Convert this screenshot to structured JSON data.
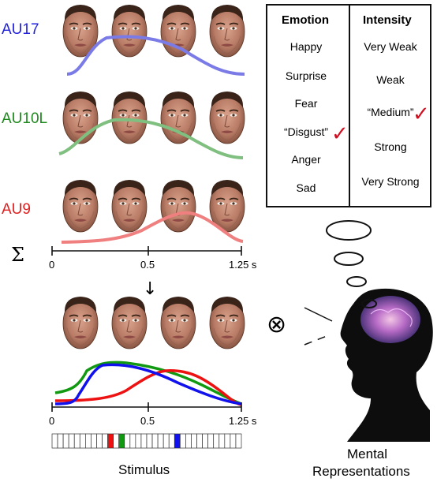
{
  "action_units": [
    {
      "label": "AU17",
      "color": "#2222dd",
      "curve_color": "#7b7be8"
    },
    {
      "label": "AU10L",
      "color": "#1e8a1e",
      "curve_color": "#7fbf7f"
    },
    {
      "label": "AU9",
      "color": "#e02020",
      "curve_color": "#f08080"
    }
  ],
  "sum_symbol": "Σ",
  "down_arrow": "↓",
  "otimes_symbol": "⊗",
  "check_mark": "✓",
  "axis": {
    "tick_0": "0",
    "tick_mid": "0.5",
    "tick_end": "1.25 s"
  },
  "table": {
    "emotion_header": "Emotion",
    "intensity_header": "Intensity",
    "emotions": [
      "Happy",
      "Surprise",
      "Fear",
      "“Disgust”",
      "Anger",
      "Sad"
    ],
    "intensities": [
      "Very Weak",
      "Weak",
      "“Medium”",
      "Strong",
      "Very Strong"
    ],
    "selected_emotion_index": 3,
    "selected_intensity_index": 2
  },
  "captions": {
    "stimulus": "Stimulus",
    "mental_line1": "Mental",
    "mental_line2": "Representations"
  },
  "stimulus_bar": {
    "segments": 34,
    "red_index": 10,
    "green_index": 12,
    "blue_index": 22
  },
  "colors": {
    "blue": "#1111ee",
    "green": "#119911",
    "red": "#ee1111",
    "check": "#d01020"
  }
}
